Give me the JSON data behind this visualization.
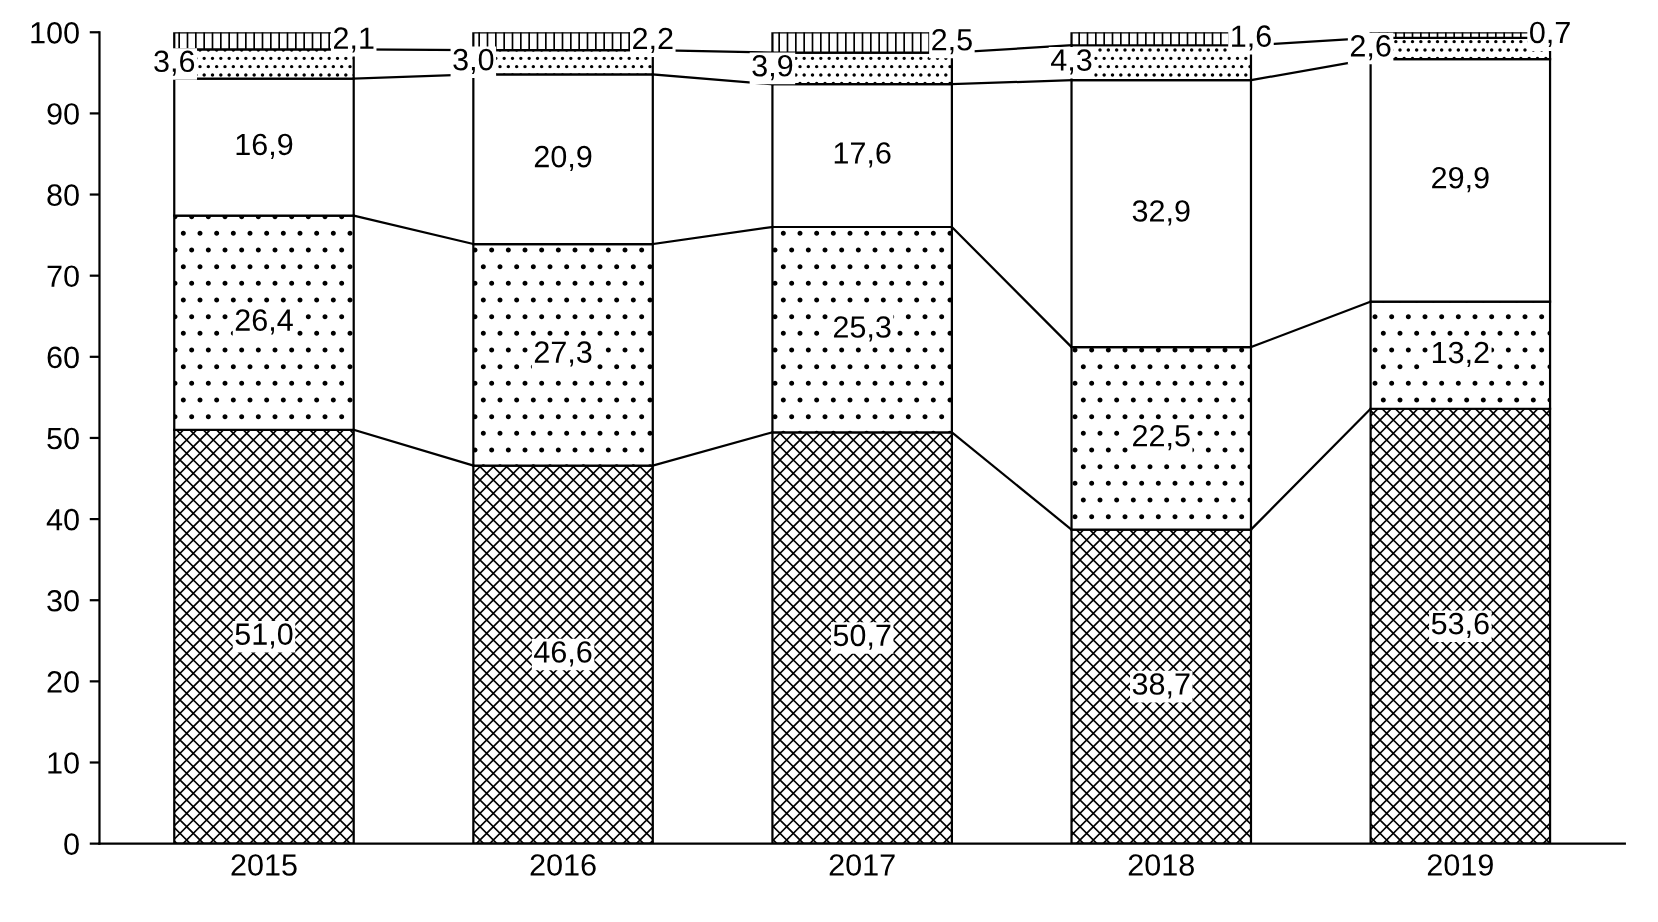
{
  "chart_data": {
    "type": "bar",
    "stacked": true,
    "categories": [
      "2015",
      "2016",
      "2017",
      "2018",
      "2019"
    ],
    "series": [
      {
        "color": "#000000",
        "values": [
          51.0,
          46.6,
          50.7,
          38.7,
          53.6
        ],
        "value_labels": [
          "51,0",
          "46,6",
          "50,7",
          "38,7",
          "53,6"
        ]
      },
      {
        "color": "#000000",
        "values": [
          26.4,
          27.3,
          25.3,
          22.5,
          13.2
        ],
        "value_labels": [
          "26,4",
          "27,3",
          "25,3",
          "22,5",
          "13,2"
        ]
      },
      {
        "color": "#ffffff",
        "values": [
          16.9,
          20.9,
          17.6,
          32.9,
          29.9
        ],
        "value_labels": [
          "16,9",
          "20,9",
          "17,6",
          "32,9",
          "29,9"
        ]
      },
      {
        "color": "#000000",
        "values": [
          3.6,
          3.0,
          3.9,
          4.3,
          2.6
        ],
        "value_labels": [
          "3,6",
          "3,0",
          "3,9",
          "4,3",
          "2,6"
        ]
      },
      {
        "color": "#000000",
        "values": [
          2.1,
          2.2,
          2.5,
          1.6,
          0.7
        ],
        "value_labels": [
          "2,1",
          "2,2",
          "2,5",
          "1,6",
          "0,7"
        ]
      }
    ],
    "ylim": [
      0,
      100
    ],
    "yticks": [
      0,
      10,
      20,
      30,
      40,
      50,
      60,
      70,
      80,
      90,
      100
    ],
    "grid": false,
    "legend": false
  }
}
